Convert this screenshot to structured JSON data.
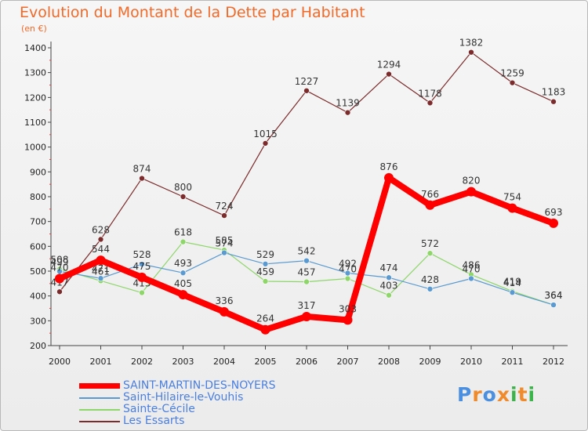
{
  "chart_data": {
    "type": "line",
    "title": "Evolution du Montant de la Dette par Habitant",
    "subtitle": "(en €)",
    "xlabel": "",
    "ylabel": "",
    "categories": [
      "2000",
      "2001",
      "2002",
      "2003",
      "2004",
      "2005",
      "2006",
      "2007",
      "2008",
      "2009",
      "2010",
      "2011",
      "2012"
    ],
    "ylim": [
      200,
      1400
    ],
    "yticks": [
      200,
      300,
      400,
      500,
      600,
      700,
      800,
      900,
      1000,
      1100,
      1200,
      1300,
      1400
    ],
    "grid": false,
    "legend": "bottom-left",
    "series": [
      {
        "name": "Les Essarts",
        "color": "#7b2b2b",
        "values": [
          417,
          628,
          874,
          800,
          724,
          1015,
          1227,
          1139,
          1294,
          1178,
          1382,
          1259,
          1183
        ]
      },
      {
        "name": "Sainte-Cécile",
        "color": "#8ed66a",
        "values": [
          508,
          461,
          413,
          618,
          585,
          459,
          457,
          470,
          403,
          572,
          486,
          419,
          364
        ]
      },
      {
        "name": "Saint-Hilaire-le-Vouhis",
        "color": "#5a9ad0",
        "values": [
          499,
          471,
          528,
          493,
          574,
          529,
          542,
          492,
          474,
          428,
          470,
          414,
          364
        ]
      },
      {
        "name": "SAINT-MARTIN-DES-NOYERS",
        "color": "#ff0000",
        "values": [
          470,
          544,
          475,
          405,
          336,
          264,
          317,
          303,
          876,
          766,
          820,
          754,
          693
        ]
      }
    ]
  },
  "legend_order": [
    "SAINT-MARTIN-DES-NOYERS",
    "Saint-Hilaire-le-Vouhis",
    "Sainte-Cécile",
    "Les Essarts"
  ],
  "logo": {
    "text": "Proxiti",
    "colors": [
      "#4a8fe0",
      "#f08a2a",
      "#4a8fe0",
      "#f08a2a",
      "#3cb44a",
      "#f08a2a",
      "#3cb44a"
    ]
  }
}
